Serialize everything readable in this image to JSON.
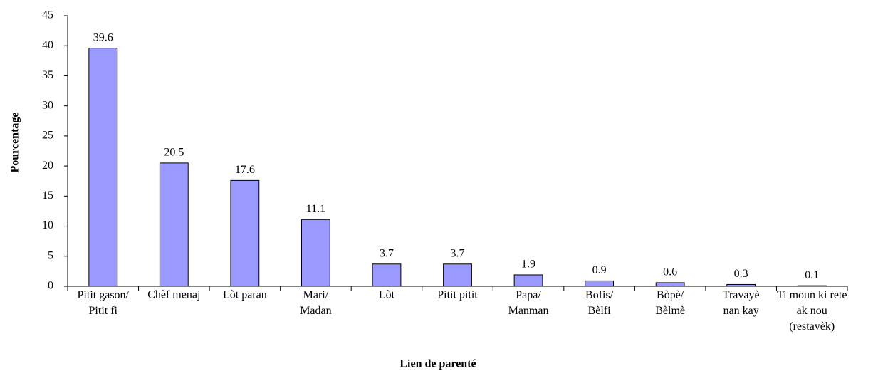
{
  "chart_data": {
    "type": "bar",
    "x_label": "Lien de parenté",
    "y_label": "Pourcentage",
    "categories": [
      "Pitit gason/\nPitit fi",
      "Chèf menaj",
      "Lòt paran",
      "Mari/\nMadan",
      "Lòt",
      "Pitit pitit",
      "Papa/\nManman",
      "Bofis/\nBèlfi",
      "Bòpè/\nBèlmè",
      "Travayè\nnan kay",
      "Ti moun ki rete\nak nou\n(restavèk)"
    ],
    "values": [
      39.6,
      20.5,
      17.6,
      11.1,
      3.7,
      3.7,
      1.9,
      0.9,
      0.6,
      0.3,
      0.1
    ],
    "color": "#9999ff",
    "ylim": [
      0,
      45
    ],
    "yticks": [
      0,
      5,
      10,
      15,
      20,
      25,
      30,
      35,
      40,
      45
    ],
    "value_labels_shown": true
  }
}
